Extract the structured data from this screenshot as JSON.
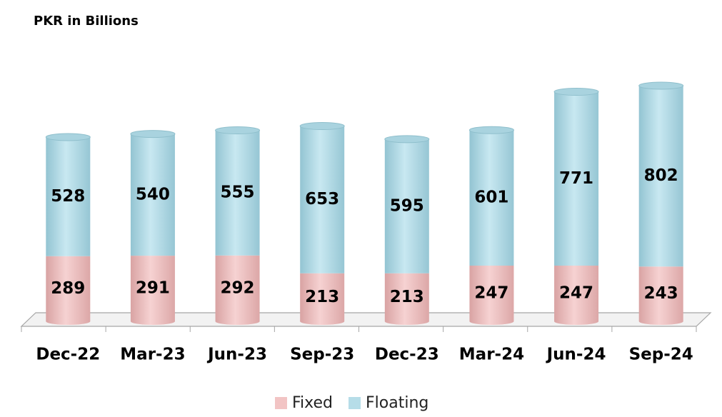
{
  "chart_data": {
    "type": "bar",
    "stacked": true,
    "title": "PKR in Billions",
    "categories": [
      "Dec-22",
      "Mar-23",
      "Jun-23",
      "Sep-23",
      "Dec-23",
      "Mar-24",
      "Jun-24",
      "Sep-24"
    ],
    "series": [
      {
        "name": "Fixed",
        "color": "#f2c4c4",
        "values": [
          289,
          291,
          292,
          213,
          213,
          247,
          247,
          243
        ]
      },
      {
        "name": "Floating",
        "color": "#b6dde8",
        "values": [
          528,
          540,
          555,
          653,
          595,
          601,
          771,
          802
        ]
      }
    ],
    "legend": "bottom"
  }
}
